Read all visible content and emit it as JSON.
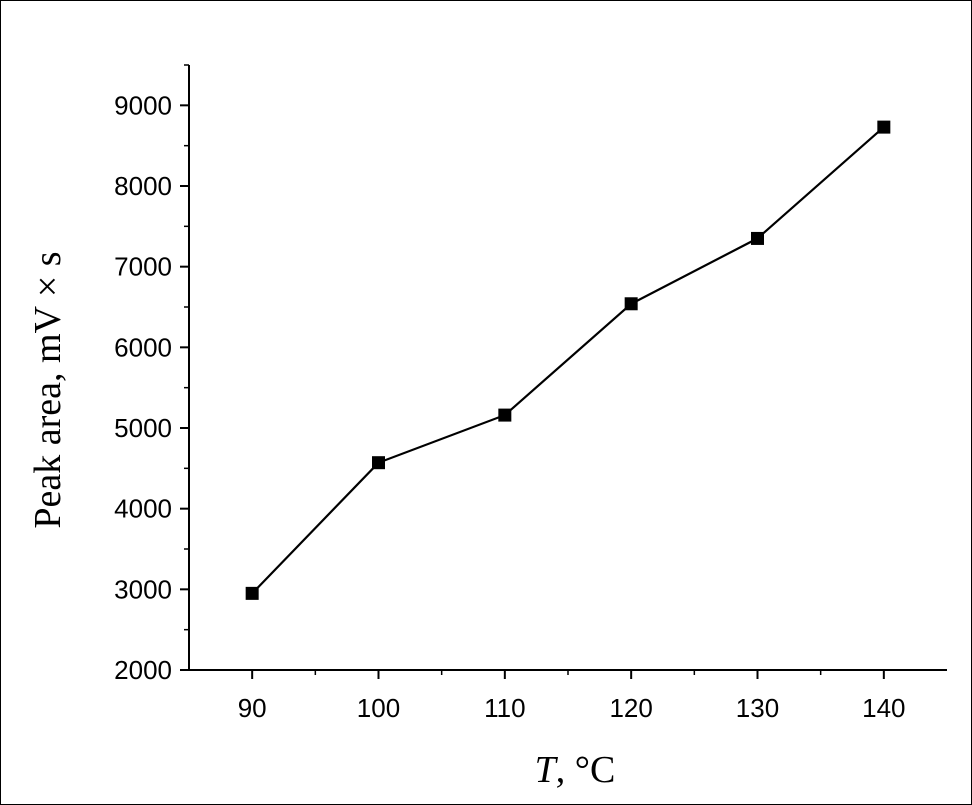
{
  "chart_data": {
    "type": "line",
    "xlabel_var": "T",
    "xlabel_unit": ", °C",
    "ylabel": "Peak area, mV × s",
    "x": [
      90,
      100,
      110,
      120,
      130,
      140
    ],
    "series": [
      {
        "values": [
          2950,
          4570,
          5160,
          6540,
          7350,
          8730
        ]
      }
    ],
    "xlim": [
      85,
      145
    ],
    "ylim": [
      2000,
      9500
    ],
    "xticks": [
      90,
      100,
      110,
      120,
      130,
      140
    ],
    "yticks": [
      2000,
      3000,
      4000,
      5000,
      6000,
      7000,
      8000,
      9000
    ],
    "grid": false,
    "marker": "square",
    "color": "#000000"
  }
}
